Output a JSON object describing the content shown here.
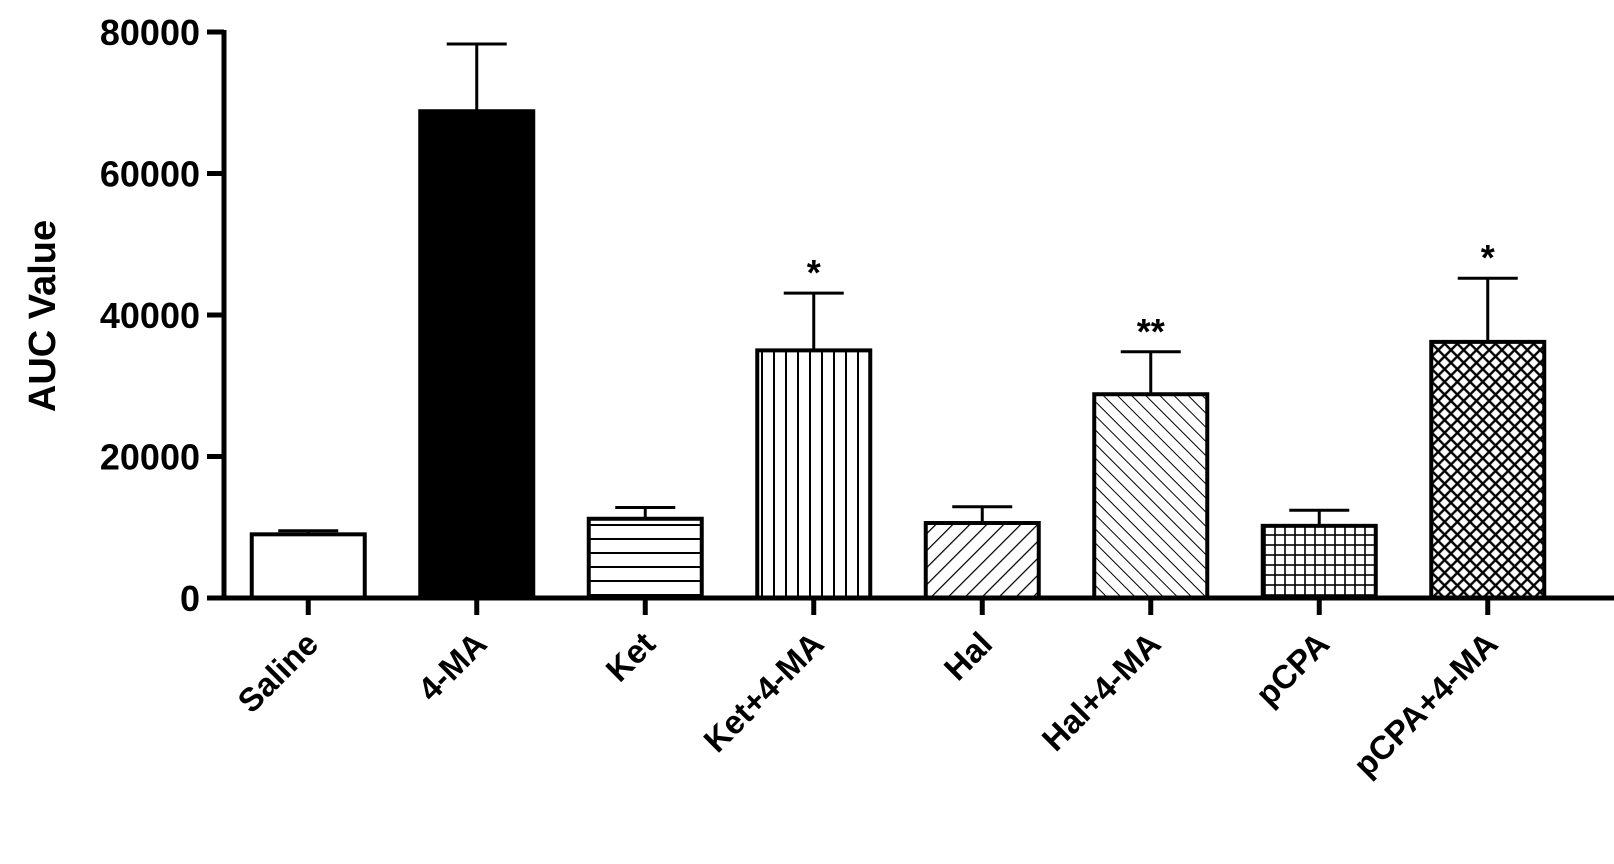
{
  "chart_data": {
    "type": "bar",
    "title": "",
    "xlabel": "",
    "ylabel": "AUC Value",
    "ylim": [
      0,
      80000
    ],
    "yticks": [
      0,
      20000,
      40000,
      60000,
      80000
    ],
    "ytick_labels": [
      "0",
      "20000",
      "40000",
      "60000",
      "80000"
    ],
    "grid": false,
    "legend": "none",
    "categories": [
      "Saline",
      "4-MA",
      "Ket",
      "Ket+4-MA",
      "Hal",
      "Hal+4-MA",
      "pCPA",
      "pCPA+4-MA"
    ],
    "values": [
      9000,
      68800,
      11200,
      35000,
      10600,
      28800,
      10200,
      36200
    ],
    "error_upper": [
      9500,
      78300,
      12800,
      43100,
      12900,
      34800,
      12400,
      45200
    ],
    "annotations": [
      "",
      "",
      "",
      "*",
      "",
      "**",
      "",
      "*"
    ],
    "fills": [
      "empty",
      "solid",
      "horizontal-lines",
      "vertical-lines",
      "diagonal-lines-wide",
      "diagonal-lines-narrow",
      "grid",
      "crosshatch"
    ],
    "colors": {
      "bar_stroke": "#000000",
      "solid_fill": "#000000",
      "background": "#ffffff"
    }
  }
}
